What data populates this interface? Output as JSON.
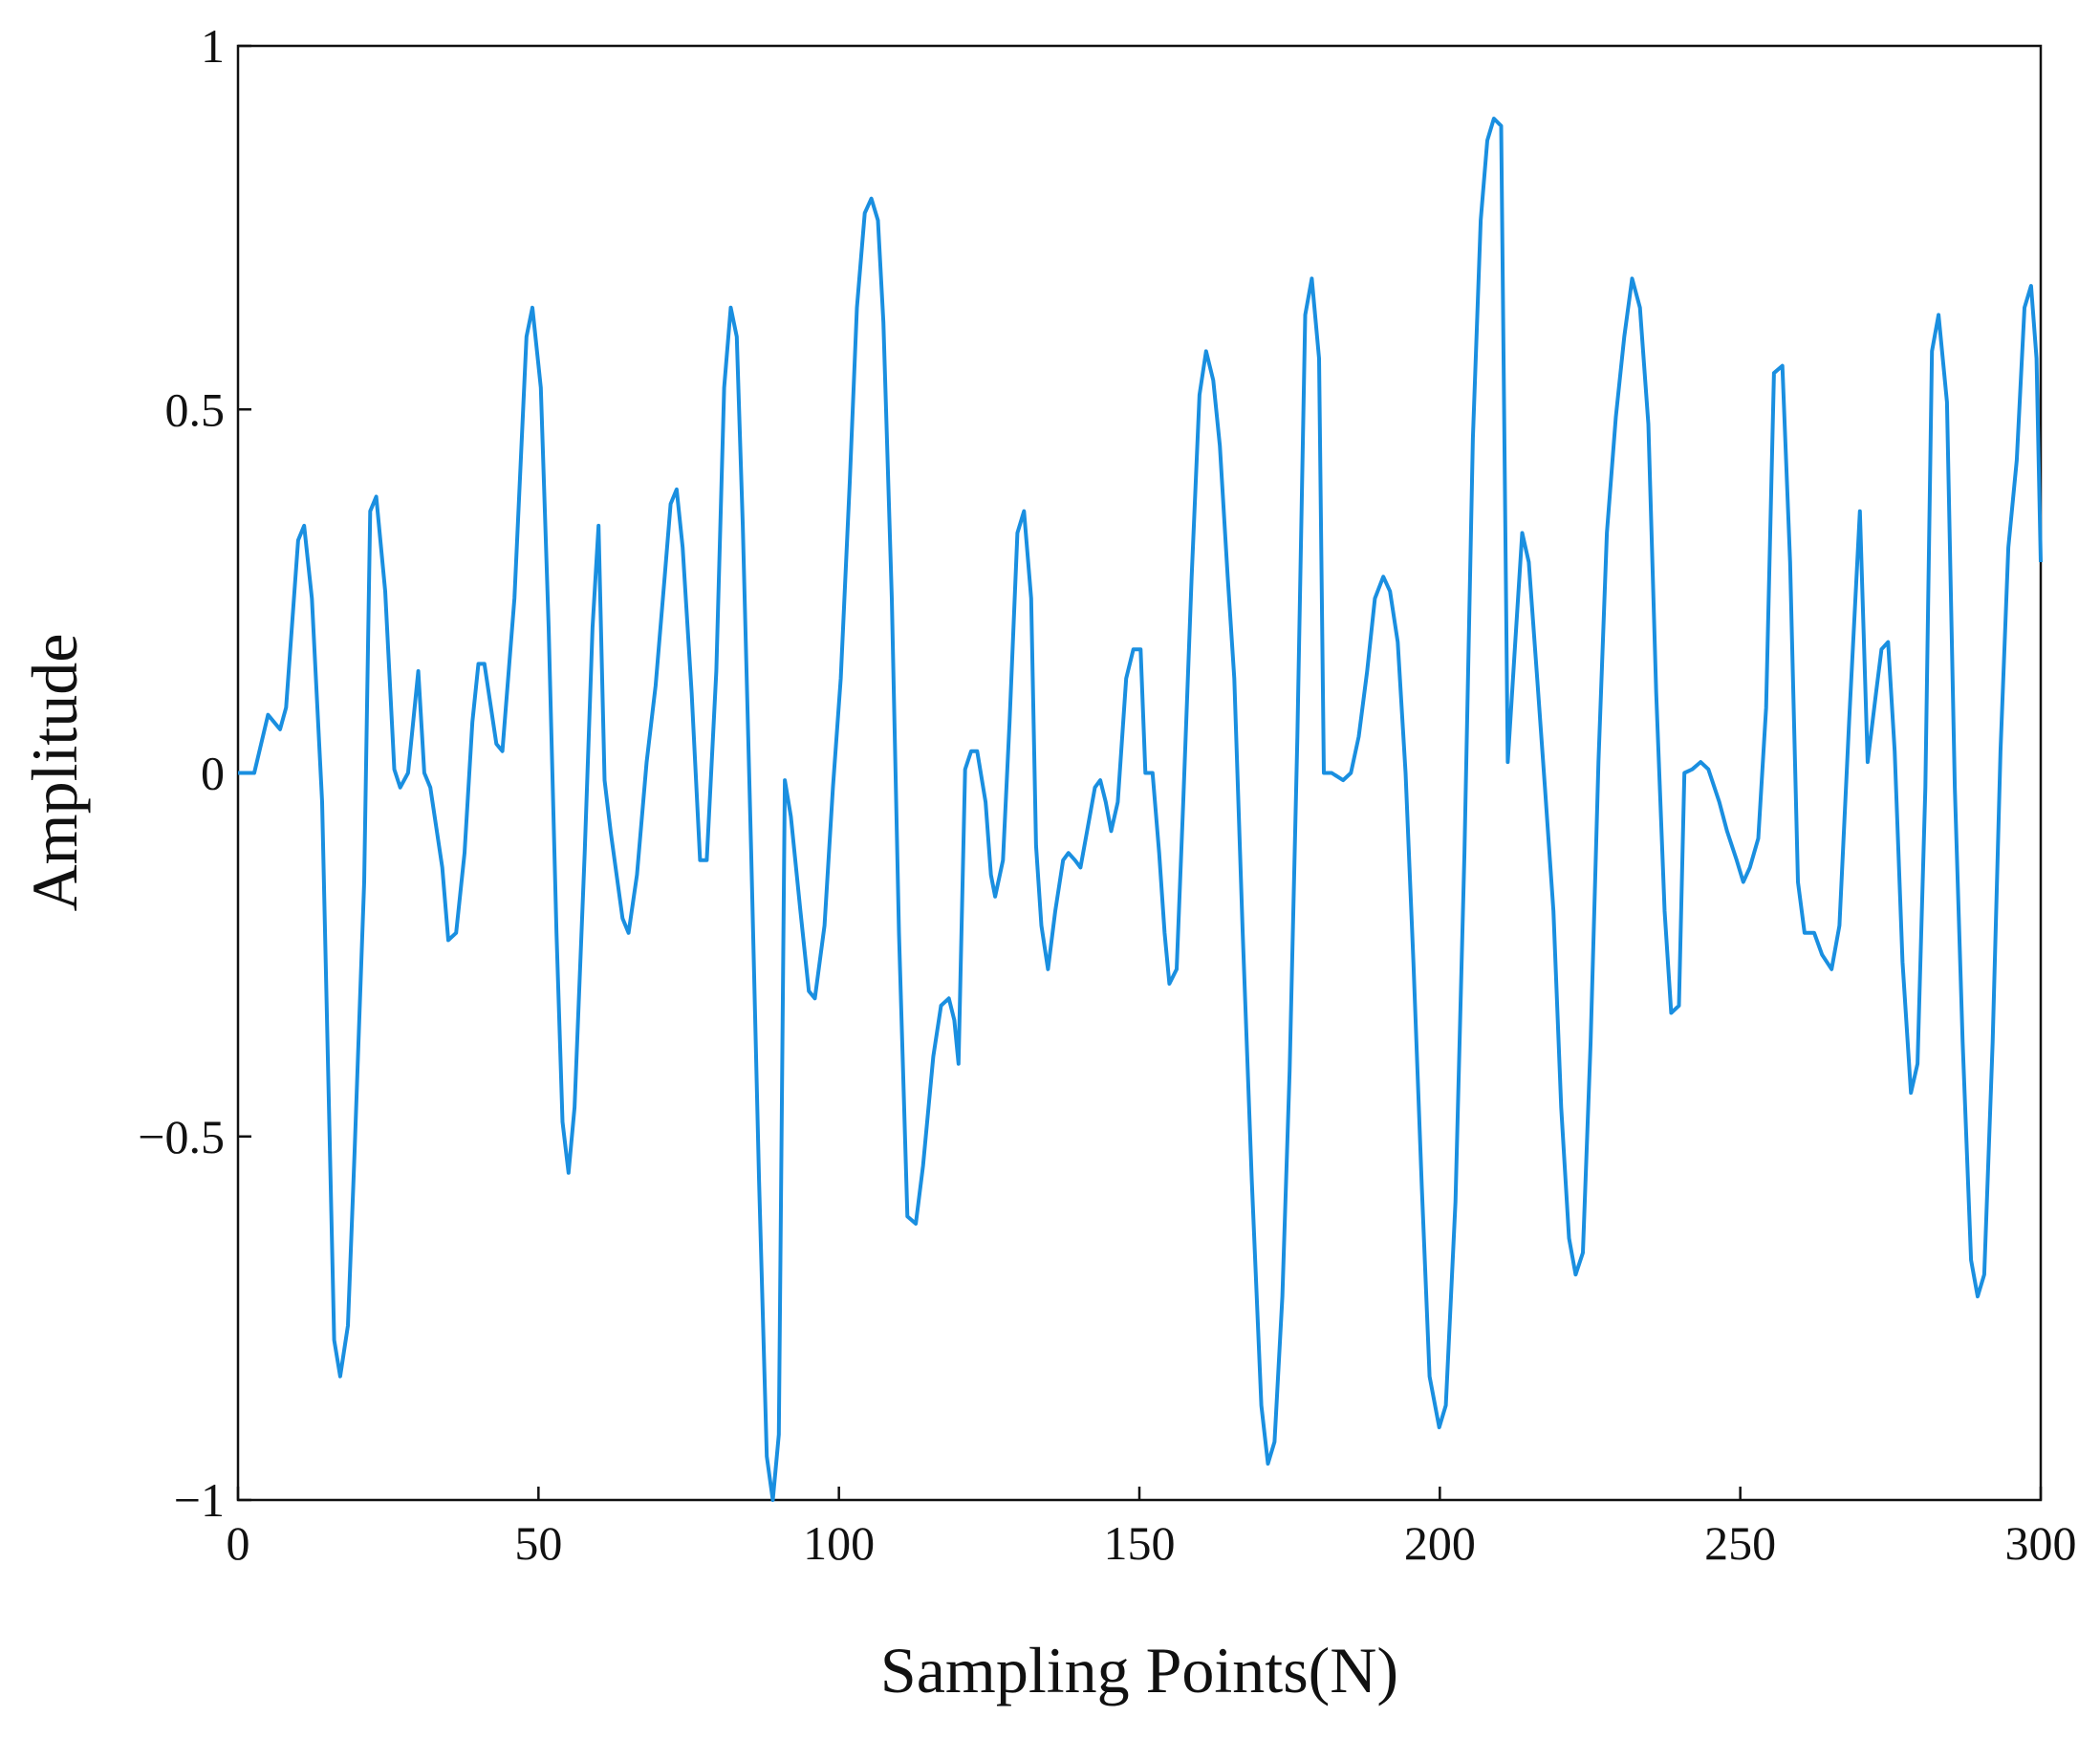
{
  "chart_data": {
    "type": "line",
    "x_label": "Sampling Points(N)",
    "y_label": "Amplitude",
    "xlim": [
      0,
      300
    ],
    "ylim": [
      -1,
      1
    ],
    "xticks": [
      0,
      50,
      100,
      150,
      200,
      250,
      300
    ],
    "yticks": [
      {
        "value": -1,
        "label": "−1"
      },
      {
        "value": -0.5,
        "label": "−0.5"
      },
      0,
      0.5,
      1
    ],
    "grid": false,
    "x": [
      0,
      2.7,
      5,
      7,
      8,
      10,
      11,
      12.3,
      14,
      16,
      17,
      18.3,
      19.4,
      21,
      22,
      23,
      24.5,
      26,
      27,
      28.3,
      30,
      31,
      32,
      34,
      35,
      36.3,
      37.7,
      39,
      40,
      41,
      43,
      44,
      46,
      48,
      49,
      50.4,
      51.7,
      53,
      54,
      55,
      56,
      57.7,
      59,
      60,
      61,
      62,
      64,
      65,
      66.4,
      68,
      69.5,
      71,
      72,
      73,
      74,
      75.5,
      76.9,
      78,
      79.6,
      80.9,
      82,
      83,
      84,
      85.4,
      86.7,
      88,
      89,
      90,
      91,
      92,
      93.6,
      95,
      96,
      97.6,
      99,
      100.3,
      101.8,
      103,
      104.3,
      105.4,
      106.5,
      107.4,
      108.8,
      110,
      111.4,
      112.8,
      114,
      115.7,
      117,
      118.3,
      119.2,
      119.9,
      121,
      122,
      123,
      124.4,
      125.3,
      126,
      127.3,
      128.4,
      129.7,
      130.8,
      132,
      132.8,
      133.7,
      134.8,
      136,
      137.3,
      138.2,
      139.3,
      140.2,
      141.3,
      142.6,
      143.5,
      144.4,
      145.3,
      146.4,
      147.8,
      149,
      150.2,
      151,
      152.2,
      153.3,
      154.2,
      155,
      156.2,
      157.3,
      158.7,
      160,
      161.1,
      162.3,
      163.4,
      164.7,
      165.8,
      167.2,
      168.7,
      170.3,
      171.4,
      172.5,
      173.8,
      175,
      176.3,
      177.6,
      178.7,
      179.9,
      180.7,
      182,
      183.9,
      185.2,
      186.5,
      187.9,
      189.2,
      190.6,
      191.7,
      193,
      194.3,
      195.6,
      197,
      198.3,
      199.9,
      201,
      202.6,
      204.1,
      205.5,
      206.8,
      207.9,
      209,
      210.2,
      211.3,
      212.4,
      213.7,
      214.8,
      216.2,
      217.5,
      218.9,
      220.2,
      221.5,
      222.6,
      223.8,
      225.1,
      226.4,
      227.8,
      229.3,
      230.7,
      232,
      233.3,
      234.7,
      236,
      237.4,
      238.5,
      239.8,
      240.7,
      242,
      243.4,
      244.7,
      246.5,
      247.8,
      249.4,
      250.5,
      251.6,
      253,
      254.3,
      255.6,
      257,
      258.3,
      259.6,
      260.7,
      262.3,
      263.6,
      265.2,
      266.5,
      268.1,
      269.9,
      271.2,
      272.6,
      273.5,
      274.6,
      275.7,
      277,
      278.4,
      279.5,
      280.8,
      281.9,
      283,
      284.4,
      285.7,
      287,
      288.4,
      289.5,
      290.6,
      292,
      293.3,
      294.6,
      296,
      297.3,
      298.4,
      299.3,
      300
    ],
    "series": [
      {
        "color": "#1a8fe0",
        "values": [
          0,
          0,
          0.08,
          0.06,
          0.09,
          0.32,
          0.34,
          0.24,
          -0.04,
          -0.78,
          -0.83,
          -0.76,
          -0.52,
          -0.15,
          0.36,
          0.38,
          0.25,
          0.005,
          -0.02,
          0,
          0.14,
          0,
          -0.02,
          -0.13,
          -0.23,
          -0.22,
          -0.11,
          0.07,
          0.15,
          0.15,
          0.04,
          0.03,
          0.24,
          0.6,
          0.64,
          0.53,
          0.2,
          -0.22,
          -0.48,
          -0.55,
          -0.46,
          -0.11,
          0.2,
          0.34,
          -0.01,
          -0.08,
          -0.2,
          -0.22,
          -0.14,
          0.015,
          0.12,
          0.27,
          0.37,
          0.39,
          0.31,
          0.11,
          -0.12,
          -0.12,
          0.14,
          0.53,
          0.64,
          0.6,
          0.34,
          -0.11,
          -0.56,
          -0.94,
          -1,
          -0.91,
          -0.01,
          -0.06,
          -0.19,
          -0.3,
          -0.31,
          -0.21,
          -0.02,
          0.13,
          0.4,
          0.64,
          0.77,
          0.79,
          0.76,
          0.62,
          0.24,
          -0.22,
          -0.61,
          -0.62,
          -0.54,
          -0.39,
          -0.32,
          -0.31,
          -0.34,
          -0.4,
          0.005,
          0.03,
          0.03,
          -0.04,
          -0.14,
          -0.17,
          -0.12,
          0.07,
          0.33,
          0.36,
          0.24,
          -0.1,
          -0.21,
          -0.27,
          -0.19,
          -0.12,
          -0.11,
          -0.12,
          -0.13,
          -0.08,
          -0.02,
          -0.01,
          -0.04,
          -0.08,
          -0.04,
          0.13,
          0.17,
          0.17,
          0,
          0,
          -0.11,
          -0.22,
          -0.29,
          -0.27,
          -0.04,
          0.27,
          0.52,
          0.58,
          0.54,
          0.45,
          0.27,
          0.13,
          -0.22,
          -0.56,
          -0.87,
          -0.95,
          -0.92,
          -0.72,
          -0.41,
          0.05,
          0.63,
          0.68,
          0.57,
          0,
          0,
          -0.01,
          0,
          0.05,
          0.14,
          0.24,
          0.27,
          0.25,
          0.18,
          0,
          -0.26,
          -0.57,
          -0.83,
          -0.9,
          -0.87,
          -0.59,
          -0.11,
          0.46,
          0.76,
          0.87,
          0.9,
          0.89,
          0.015,
          0.16,
          0.33,
          0.29,
          0.13,
          -0.02,
          -0.19,
          -0.46,
          -0.64,
          -0.69,
          -0.66,
          -0.37,
          0.015,
          0.33,
          0.49,
          0.6,
          0.68,
          0.64,
          0.48,
          0.11,
          -0.19,
          -0.33,
          -0.32,
          0,
          0.005,
          0.015,
          0.005,
          -0.04,
          -0.08,
          -0.12,
          -0.15,
          -0.13,
          -0.09,
          0.09,
          0.55,
          0.56,
          0.29,
          -0.15,
          -0.22,
          -0.22,
          -0.25,
          -0.27,
          -0.21,
          0.07,
          0.36,
          0.015,
          0.11,
          0.17,
          0.18,
          0.03,
          -0.26,
          -0.44,
          -0.4,
          -0.02,
          0.58,
          0.63,
          0.51,
          -0.02,
          -0.37,
          -0.67,
          -0.72,
          -0.69,
          -0.37,
          0.03,
          0.31,
          0.43,
          0.64,
          0.67,
          0.57,
          0.29
        ]
      }
    ]
  }
}
